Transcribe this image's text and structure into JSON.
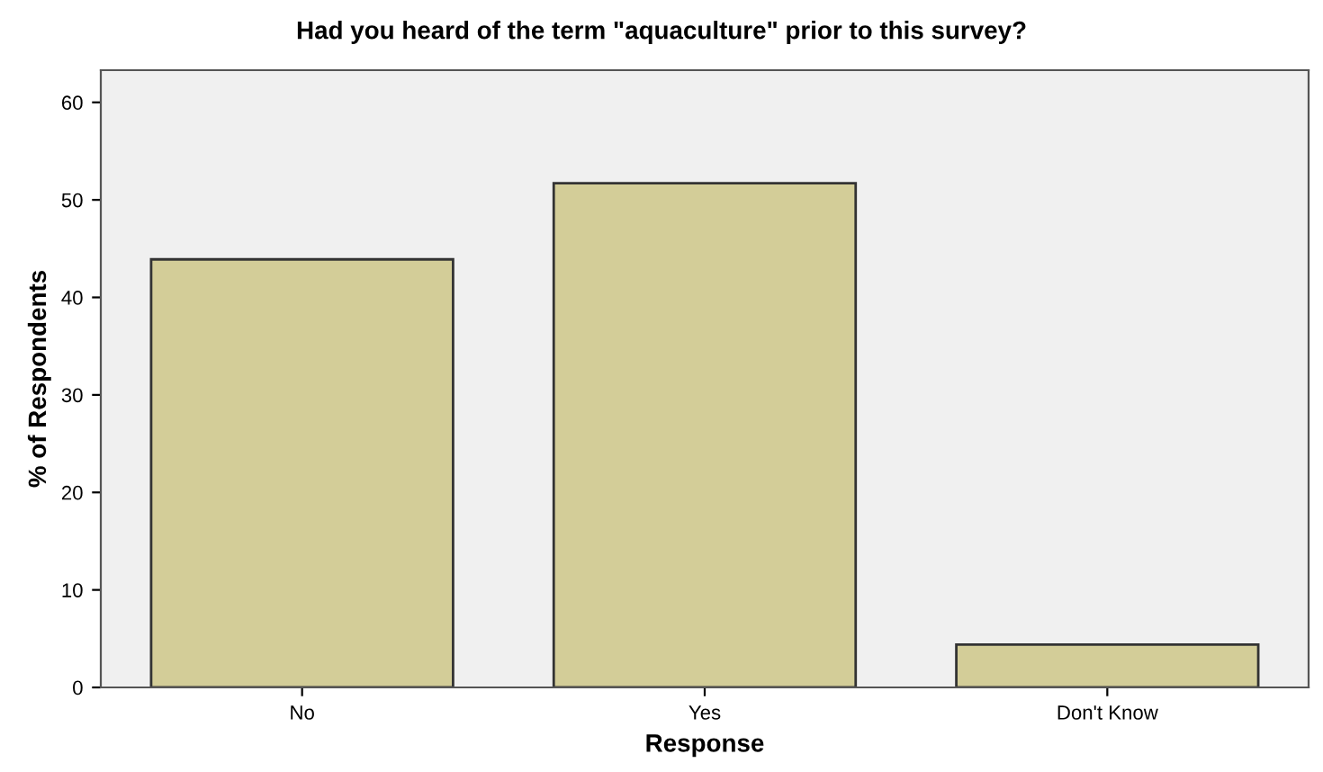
{
  "chart_data": {
    "type": "bar",
    "title": "Had you heard of the term \"aquaculture\" prior to this survey?",
    "xlabel": "Response",
    "ylabel": "% of Respondents",
    "categories": [
      "No",
      "Yes",
      "Don't Know"
    ],
    "values": [
      43.9,
      51.7,
      4.4
    ],
    "color": "#d3cd98",
    "ylim": [
      0,
      63.3
    ],
    "yticks": [
      0,
      10,
      20,
      30,
      40,
      50,
      60
    ],
    "grid": false,
    "legend": false
  }
}
